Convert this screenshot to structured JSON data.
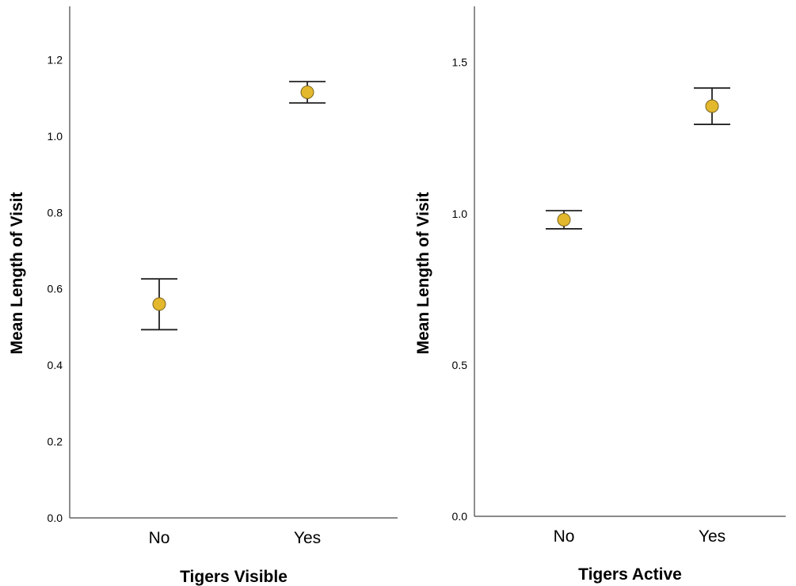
{
  "chart_data": [
    {
      "type": "scatter",
      "xlabel": "Tigers Visible",
      "ylabel": "Mean Length of Visit",
      "categories": [
        "No",
        "Yes"
      ],
      "values": [
        0.56,
        1.115
      ],
      "error_low": [
        0.493,
        1.087
      ],
      "error_high": [
        0.626,
        1.143
      ],
      "yticks": [
        "0.0",
        "0.2",
        "0.4",
        "0.6",
        "0.8",
        "1.0",
        "1.2"
      ],
      "ylim": [
        0,
        1.34
      ],
      "grid": false,
      "marker_color": "#e3b82c"
    },
    {
      "type": "scatter",
      "xlabel": "Tigers Active",
      "ylabel": "Mean Length of Visit",
      "categories": [
        "No",
        "Yes"
      ],
      "values": [
        0.98,
        1.355
      ],
      "error_low": [
        0.95,
        1.295
      ],
      "error_high": [
        1.01,
        1.415
      ],
      "yticks": [
        "0.0",
        "0.5",
        "1.0",
        "1.5"
      ],
      "ylim": [
        0,
        1.685
      ],
      "grid": false,
      "marker_color": "#e3b82c"
    }
  ]
}
